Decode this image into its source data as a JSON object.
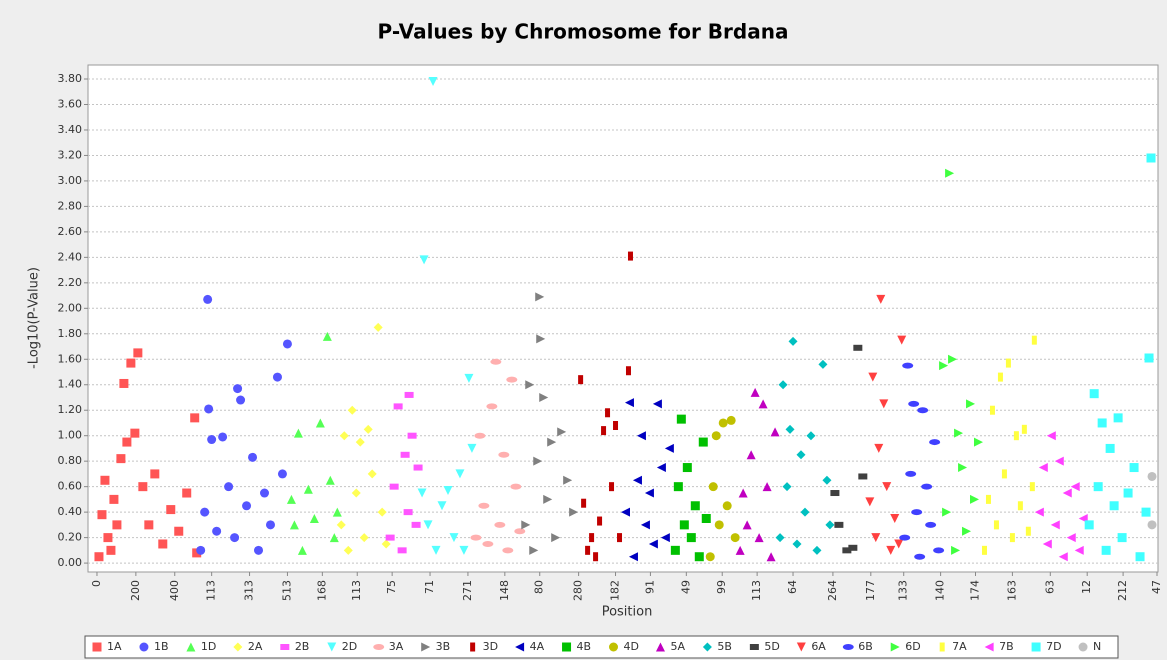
{
  "chart_data": {
    "type": "scatter",
    "title": "P-Values by Chromosome for Brdana",
    "xlabel": "Position",
    "ylabel": "-Log10(P-Value)",
    "grid": true,
    "legend": "bottom",
    "xlim": [
      -45,
      5320
    ],
    "ylim": [
      -0.07,
      3.91
    ],
    "xticks": [
      {
        "value": 0,
        "label": "0"
      },
      {
        "value": 195,
        "label": "200"
      },
      {
        "value": 390,
        "label": "400"
      },
      {
        "value": 575,
        "label": "113"
      },
      {
        "value": 765,
        "label": "313"
      },
      {
        "value": 955,
        "label": "513"
      },
      {
        "value": 1130,
        "label": "168"
      },
      {
        "value": 1305,
        "label": "113"
      },
      {
        "value": 1480,
        "label": "75"
      },
      {
        "value": 1670,
        "label": "71"
      },
      {
        "value": 1860,
        "label": "271"
      },
      {
        "value": 2045,
        "label": "148"
      },
      {
        "value": 2220,
        "label": "80"
      },
      {
        "value": 2415,
        "label": "280"
      },
      {
        "value": 2600,
        "label": "182"
      },
      {
        "value": 2775,
        "label": "91"
      },
      {
        "value": 2955,
        "label": "49"
      },
      {
        "value": 3135,
        "label": "99"
      },
      {
        "value": 3310,
        "label": "113"
      },
      {
        "value": 3490,
        "label": "64"
      },
      {
        "value": 3690,
        "label": "264"
      },
      {
        "value": 3880,
        "label": "177"
      },
      {
        "value": 4045,
        "label": "133"
      },
      {
        "value": 4230,
        "label": "140"
      },
      {
        "value": 4405,
        "label": "174"
      },
      {
        "value": 4590,
        "label": "163"
      },
      {
        "value": 4780,
        "label": "63"
      },
      {
        "value": 4965,
        "label": "12"
      },
      {
        "value": 5145,
        "label": "212"
      },
      {
        "value": 5315,
        "label": "47"
      }
    ],
    "yticks": [
      {
        "value": 0,
        "label": "0.00"
      },
      {
        "value": 0.2,
        "label": "0.20"
      },
      {
        "value": 0.4,
        "label": "0.40"
      },
      {
        "value": 0.6,
        "label": "0.60"
      },
      {
        "value": 0.8,
        "label": "0.80"
      },
      {
        "value": 1,
        "label": "1.00"
      },
      {
        "value": 1.2,
        "label": "1.20"
      },
      {
        "value": 1.4,
        "label": "1.40"
      },
      {
        "value": 1.6,
        "label": "1.60"
      },
      {
        "value": 1.8,
        "label": "1.80"
      },
      {
        "value": 2,
        "label": "2.00"
      },
      {
        "value": 2.2,
        "label": "2.20"
      },
      {
        "value": 2.4,
        "label": "2.40"
      },
      {
        "value": 2.6,
        "label": "2.60"
      },
      {
        "value": 2.8,
        "label": "2.80"
      },
      {
        "value": 3,
        "label": "3.00"
      },
      {
        "value": 3.2,
        "label": "3.20"
      },
      {
        "value": 3.4,
        "label": "3.40"
      },
      {
        "value": 3.6,
        "label": "3.60"
      },
      {
        "value": 3.8,
        "label": "3.80"
      }
    ],
    "series": [
      {
        "name": "1A",
        "color": "#ff5555",
        "marker": "square",
        "x": [
          10,
          25,
          40,
          55,
          70,
          85,
          100,
          120,
          135,
          150,
          170,
          190,
          205,
          230,
          260,
          290,
          330,
          370,
          410,
          450,
          490,
          500
        ],
        "values": [
          0.05,
          0.38,
          0.65,
          0.2,
          0.1,
          0.5,
          0.3,
          0.82,
          1.41,
          0.95,
          1.57,
          1.02,
          1.65,
          0.6,
          0.3,
          0.7,
          0.15,
          0.42,
          0.25,
          0.55,
          1.14,
          0.08
        ]
      },
      {
        "name": "1B",
        "color": "#5555ff",
        "marker": "circle",
        "x": [
          520,
          540,
          555,
          560,
          575,
          600,
          630,
          660,
          690,
          705,
          720,
          750,
          780,
          810,
          840,
          870,
          905,
          930,
          955
        ],
        "values": [
          0.1,
          0.4,
          2.07,
          1.21,
          0.97,
          0.25,
          0.99,
          0.6,
          0.2,
          1.37,
          1.28,
          0.45,
          0.83,
          0.1,
          0.55,
          0.3,
          1.46,
          0.7,
          1.72
        ]
      },
      {
        "name": "1D",
        "color": "#55ff55",
        "marker": "triangle-up",
        "x": [
          975,
          990,
          1010,
          1030,
          1060,
          1090,
          1120,
          1155,
          1170,
          1190,
          1205
        ],
        "values": [
          0.5,
          0.3,
          1.02,
          0.1,
          0.58,
          0.35,
          1.1,
          1.78,
          0.65,
          0.2,
          0.4
        ]
      },
      {
        "name": "2A",
        "color": "#ffff55",
        "marker": "diamond",
        "x": [
          1225,
          1240,
          1260,
          1280,
          1300,
          1320,
          1340,
          1360,
          1380,
          1410,
          1430,
          1450
        ],
        "values": [
          0.3,
          1.0,
          0.1,
          1.2,
          0.55,
          0.95,
          0.2,
          1.05,
          0.7,
          1.85,
          0.4,
          0.15
        ]
      },
      {
        "name": "2B",
        "color": "#ff55ff",
        "marker": "hrect",
        "x": [
          1470,
          1490,
          1510,
          1530,
          1545,
          1560,
          1565,
          1580,
          1600,
          1610
        ],
        "values": [
          0.2,
          0.6,
          1.23,
          0.1,
          0.85,
          0.4,
          1.32,
          1.0,
          0.3,
          0.75
        ]
      },
      {
        "name": "2D",
        "color": "#55ffff",
        "marker": "triangle-down",
        "x": [
          1630,
          1640,
          1660,
          1685,
          1700,
          1730,
          1760,
          1790,
          1820,
          1840,
          1865,
          1880
        ],
        "values": [
          0.55,
          2.38,
          0.3,
          3.78,
          0.1,
          0.45,
          0.57,
          0.2,
          0.7,
          0.1,
          1.45,
          0.9
        ]
      },
      {
        "name": "3A",
        "color": "#ffafaf",
        "marker": "ellipse",
        "x": [
          1900,
          1920,
          1940,
          1960,
          1980,
          2000,
          2020,
          2040,
          2060,
          2080,
          2100,
          2120
        ],
        "values": [
          0.2,
          1.0,
          0.45,
          0.15,
          1.23,
          1.58,
          0.3,
          0.85,
          0.1,
          1.44,
          0.6,
          0.25
        ]
      },
      {
        "name": "3B",
        "color": "#808080",
        "marker": "triangle-right",
        "x": [
          2150,
          2170,
          2190,
          2210,
          2220,
          2225,
          2240,
          2260,
          2280,
          2300,
          2330,
          2360,
          2390
        ],
        "values": [
          0.3,
          1.4,
          0.1,
          0.8,
          2.09,
          1.76,
          1.3,
          0.5,
          0.95,
          0.2,
          1.03,
          0.65,
          0.4
        ]
      },
      {
        "name": "3D",
        "color": "#c00000",
        "marker": "vrect",
        "x": [
          2425,
          2440,
          2460,
          2480,
          2500,
          2520,
          2540,
          2560,
          2580,
          2600,
          2620,
          2665,
          2675
        ],
        "values": [
          1.44,
          0.47,
          0.1,
          0.2,
          0.05,
          0.33,
          1.04,
          1.18,
          0.6,
          1.08,
          0.2,
          1.51,
          2.41
        ]
      },
      {
        "name": "4A",
        "color": "#0000c0",
        "marker": "triangle-left",
        "x": [
          2650,
          2670,
          2690,
          2710,
          2730,
          2750,
          2770,
          2790,
          2810,
          2830,
          2850,
          2870
        ],
        "values": [
          0.4,
          1.26,
          0.05,
          0.65,
          1.0,
          0.3,
          0.55,
          0.15,
          1.25,
          0.75,
          0.2,
          0.9
        ]
      },
      {
        "name": "4B",
        "color": "#00c000",
        "marker": "square",
        "x": [
          2900,
          2915,
          2930,
          2945,
          2960,
          2980,
          3000,
          3020,
          3040,
          3055
        ],
        "values": [
          0.1,
          0.6,
          1.13,
          0.3,
          0.75,
          0.2,
          0.45,
          0.05,
          0.95,
          0.35
        ]
      },
      {
        "name": "4D",
        "color": "#c0c000",
        "marker": "circle",
        "x": [
          3075,
          3090,
          3105,
          3120,
          3140,
          3160,
          3180,
          3200
        ],
        "values": [
          0.05,
          0.6,
          1.0,
          0.3,
          1.1,
          0.45,
          1.12,
          0.2
        ]
      },
      {
        "name": "5A",
        "color": "#c000c0",
        "marker": "triangle-up",
        "x": [
          3225,
          3240,
          3260,
          3280,
          3300,
          3320,
          3340,
          3360,
          3380,
          3400
        ],
        "values": [
          0.1,
          0.55,
          0.3,
          0.85,
          1.34,
          0.2,
          1.25,
          0.6,
          0.05,
          1.03
        ]
      },
      {
        "name": "5B",
        "color": "#00c0c0",
        "marker": "diamond",
        "x": [
          3425,
          3440,
          3460,
          3475,
          3490,
          3510,
          3530,
          3550,
          3580,
          3610,
          3640,
          3660,
          3675
        ],
        "values": [
          0.2,
          1.4,
          0.6,
          1.05,
          1.74,
          0.15,
          0.85,
          0.4,
          1.0,
          0.1,
          1.56,
          0.65,
          0.3
        ]
      },
      {
        "name": "5D",
        "color": "#404040",
        "marker": "hrect",
        "x": [
          3700,
          3720,
          3760,
          3790,
          3815,
          3840
        ],
        "values": [
          0.55,
          0.3,
          0.1,
          0.12,
          1.69,
          0.68
        ]
      },
      {
        "name": "6A",
        "color": "#ff4040",
        "marker": "triangle-down",
        "x": [
          3875,
          3890,
          3905,
          3920,
          3930,
          3945,
          3960,
          3980,
          4000,
          4020,
          4035
        ],
        "values": [
          0.48,
          1.46,
          0.2,
          0.9,
          2.07,
          1.25,
          0.6,
          0.1,
          0.35,
          0.15,
          1.75
        ]
      },
      {
        "name": "6B",
        "color": "#4040ff",
        "marker": "ellipse",
        "x": [
          4050,
          4065,
          4080,
          4095,
          4110,
          4125,
          4140,
          4160,
          4180,
          4200,
          4220
        ],
        "values": [
          0.2,
          1.55,
          0.7,
          1.25,
          0.4,
          0.05,
          1.2,
          0.6,
          0.3,
          0.95,
          0.1
        ]
      },
      {
        "name": "6D",
        "color": "#40ff40",
        "marker": "triangle-right",
        "x": [
          4245,
          4260,
          4275,
          4290,
          4305,
          4320,
          4340,
          4360,
          4380,
          4400,
          4420
        ],
        "values": [
          1.55,
          0.4,
          3.06,
          1.6,
          0.1,
          1.02,
          0.75,
          0.25,
          1.25,
          0.5,
          0.95
        ]
      },
      {
        "name": "7A",
        "color": "#ffff40",
        "marker": "vrect",
        "x": [
          4450,
          4470,
          4490,
          4510,
          4530,
          4550,
          4570,
          4590,
          4610,
          4630,
          4650,
          4670,
          4690,
          4700
        ],
        "values": [
          0.1,
          0.5,
          1.2,
          0.3,
          1.46,
          0.7,
          1.57,
          0.2,
          1.0,
          0.45,
          1.05,
          0.25,
          0.6,
          1.75
        ]
      },
      {
        "name": "7B",
        "color": "#ff40ff",
        "marker": "triangle-left",
        "x": [
          4725,
          4745,
          4765,
          4785,
          4805,
          4825,
          4845,
          4865,
          4885,
          4905,
          4925,
          4945
        ],
        "values": [
          0.4,
          0.75,
          0.15,
          1.0,
          0.3,
          0.8,
          0.05,
          0.55,
          0.2,
          0.6,
          0.1,
          0.35
        ]
      },
      {
        "name": "7D",
        "color": "#40ffff",
        "marker": "square",
        "x": [
          4975,
          5000,
          5020,
          5040,
          5060,
          5080,
          5100,
          5120,
          5140,
          5170,
          5200,
          5230,
          5260,
          5275,
          5285
        ],
        "values": [
          0.3,
          1.33,
          0.6,
          1.1,
          0.1,
          0.9,
          0.45,
          1.14,
          0.2,
          0.55,
          0.75,
          0.05,
          0.4,
          1.61,
          3.18
        ]
      },
      {
        "name": "N",
        "color": "#c0c0c0",
        "marker": "circle",
        "x": [
          5290,
          5290
        ],
        "values": [
          0.68,
          0.3
        ]
      }
    ]
  }
}
